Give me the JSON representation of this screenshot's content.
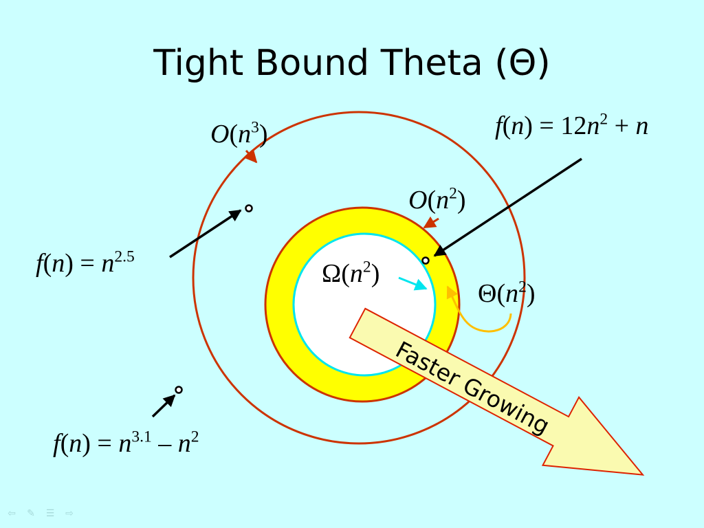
{
  "title": "Tight Bound Theta (Θ)",
  "labels": {
    "big_o_n3": {
      "sym": "O",
      "arg": "n",
      "exp": "3"
    },
    "big_o_n2": {
      "sym": "O",
      "arg": "n",
      "exp": "2"
    },
    "omega_n2": {
      "sym": "Ω",
      "arg": "n",
      "exp": "2"
    },
    "theta_n2": {
      "sym": "Θ",
      "arg": "n",
      "exp": "2"
    },
    "f1": {
      "lhs": "f",
      "var": "n",
      "base": "n",
      "exp": "2.5"
    },
    "f2": {
      "lhs": "f",
      "var": "n",
      "base": "n",
      "exp": "3.1",
      "minus": " – ",
      "term": "n",
      "term_exp": "2"
    },
    "f3": {
      "lhs": "f",
      "var": "n",
      "coef": "12",
      "base": "n",
      "exp": "2",
      "plus": " + ",
      "term": "n"
    }
  },
  "arrow_label": "Faster Growing",
  "colors": {
    "background": "#ccffff",
    "outer_circle": "#cc3300",
    "yellow_ring": "#ffff00",
    "inner_circle_stroke": "#00e5ee",
    "theta_arrow": "#ffbf00",
    "big_arrow_start": "#fafab0",
    "big_arrow_end": "#dd2200"
  },
  "nav_icons": [
    "prev-arrow-icon",
    "pen-icon",
    "menu-icon",
    "next-arrow-icon"
  ]
}
